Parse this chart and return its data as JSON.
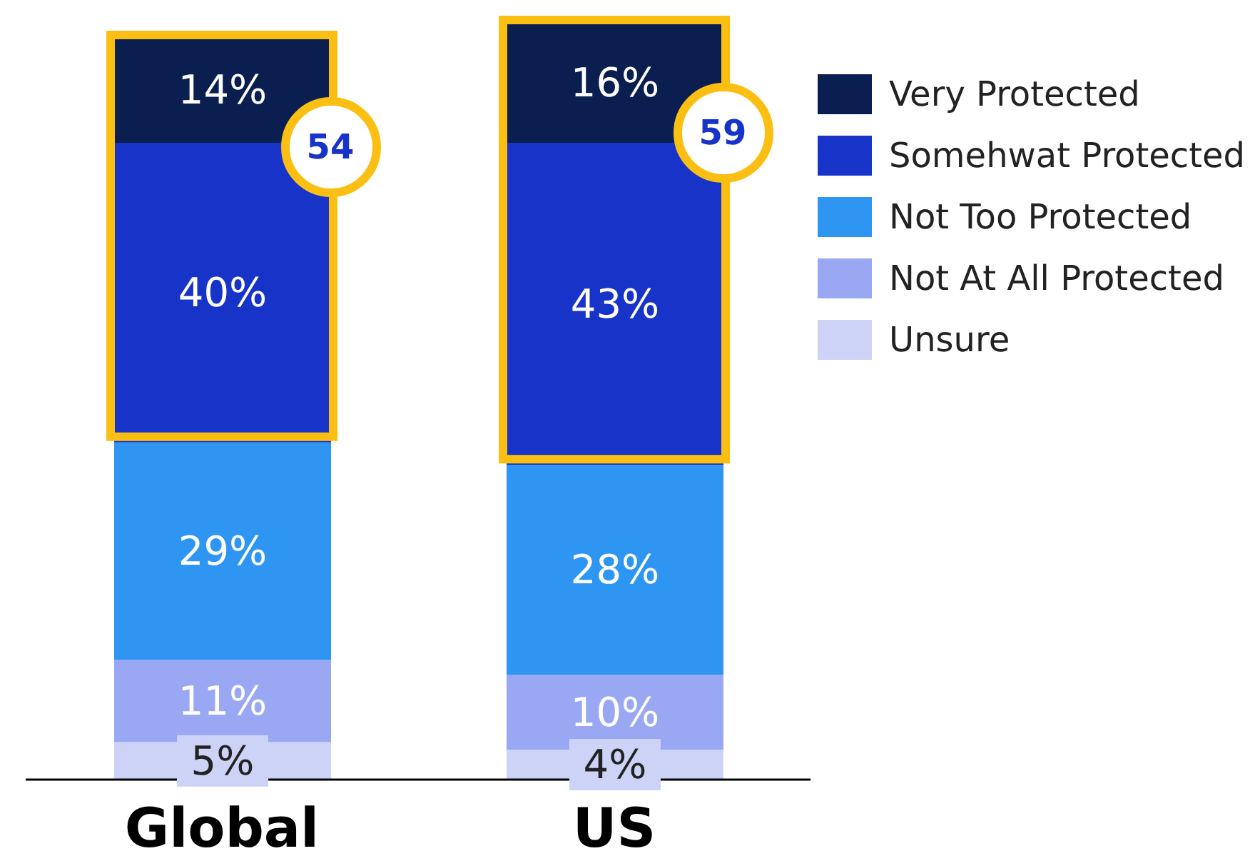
{
  "chart_data": {
    "type": "bar",
    "stacked": true,
    "categories": [
      "Global",
      "US"
    ],
    "series": [
      {
        "name": "Unsure",
        "color": "#ccd3f7",
        "values": [
          5,
          4
        ],
        "value_labels": [
          "5%",
          "4%"
        ]
      },
      {
        "name": "Not At All Protected",
        "color": "#9aa8f4",
        "values": [
          11,
          10
        ],
        "value_labels": [
          "11%",
          "10%"
        ]
      },
      {
        "name": "Not Too Protected",
        "color": "#2e96f2",
        "values": [
          29,
          28
        ],
        "value_labels": [
          "29%",
          "28%"
        ]
      },
      {
        "name": "Somehwat Protected",
        "color": "#1733c8",
        "values": [
          40,
          43
        ],
        "value_labels": [
          "40%",
          "43%"
        ]
      },
      {
        "name": "Very Protected",
        "color": "#0a1f4f",
        "values": [
          14,
          16
        ],
        "value_labels": [
          "14%",
          "16%"
        ]
      }
    ],
    "annotations": [
      "54",
      "59"
    ],
    "legend": "right"
  }
}
